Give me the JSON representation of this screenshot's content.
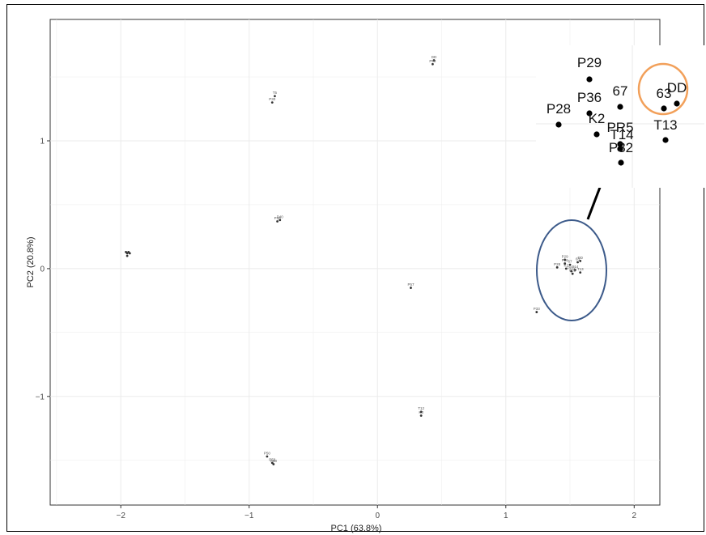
{
  "chart_data": {
    "type": "scatter",
    "xlabel": "PC1 (63.8%)",
    "ylabel": "PC2 (20.8%)",
    "xlim": [
      -2.55,
      2.2
    ],
    "ylim": [
      -1.85,
      1.95
    ],
    "xticks": [
      -2,
      -1,
      0,
      1,
      2
    ],
    "yticks": [
      -1,
      0,
      1
    ],
    "grid": true,
    "points": [
      {
        "x": -1.96,
        "y": 0.13,
        "label": ""
      },
      {
        "x": -1.95,
        "y": 0.12,
        "label": ""
      },
      {
        "x": -1.94,
        "y": 0.13,
        "label": ""
      },
      {
        "x": -1.93,
        "y": 0.12,
        "label": ""
      },
      {
        "x": -1.95,
        "y": 0.1,
        "label": ""
      },
      {
        "x": -0.8,
        "y": 1.35,
        "label": "T5"
      },
      {
        "x": -0.82,
        "y": 1.3,
        "label": "P30"
      },
      {
        "x": -0.76,
        "y": 0.38,
        "label": "P40"
      },
      {
        "x": -0.78,
        "y": 0.37,
        "label": "P36"
      },
      {
        "x": -0.86,
        "y": -1.47,
        "label": "P50"
      },
      {
        "x": -0.82,
        "y": -1.52,
        "label": "P59"
      },
      {
        "x": -0.81,
        "y": -1.53,
        "label": "P58"
      },
      {
        "x": 0.44,
        "y": 1.63,
        "label": "DD"
      },
      {
        "x": 0.43,
        "y": 1.6,
        "label": "P98"
      },
      {
        "x": 0.26,
        "y": -0.15,
        "label": "P57"
      },
      {
        "x": 0.34,
        "y": -1.12,
        "label": "T12"
      },
      {
        "x": 0.34,
        "y": -1.15,
        "label": "K3"
      },
      {
        "x": 1.24,
        "y": -0.34,
        "label": "P33"
      },
      {
        "x": 1.46,
        "y": 0.07,
        "label": "P29"
      },
      {
        "x": 1.46,
        "y": 0.04,
        "label": "P36"
      },
      {
        "x": 1.4,
        "y": 0.01,
        "label": "P28"
      },
      {
        "x": 1.5,
        "y": 0.03,
        "label": "67"
      },
      {
        "x": 1.47,
        "y": 0.0,
        "label": "K2"
      },
      {
        "x": 1.51,
        "y": -0.02,
        "label": "PR5"
      },
      {
        "x": 1.52,
        "y": -0.04,
        "label": "P32"
      },
      {
        "x": 1.54,
        "y": -0.01,
        "label": "T14"
      },
      {
        "x": 1.56,
        "y": 0.05,
        "label": "63"
      },
      {
        "x": 1.58,
        "y": 0.06,
        "label": "DD"
      },
      {
        "x": 1.58,
        "y": -0.03,
        "label": "T13"
      }
    ]
  },
  "inset": {
    "points": [
      {
        "label": "P29"
      },
      {
        "label": "P36"
      },
      {
        "label": "67"
      },
      {
        "label": "63"
      },
      {
        "label": "DD"
      },
      {
        "label": "P28"
      },
      {
        "label": "K2"
      },
      {
        "label": "PR5"
      },
      {
        "label": "T14"
      },
      {
        "label": "T13"
      },
      {
        "label": "P32"
      }
    ]
  },
  "colors": {
    "blue_ellipse": "#3c5a8a",
    "orange_circle": "#f2a05a",
    "points": "#333333",
    "grid": "#ebebeb"
  }
}
